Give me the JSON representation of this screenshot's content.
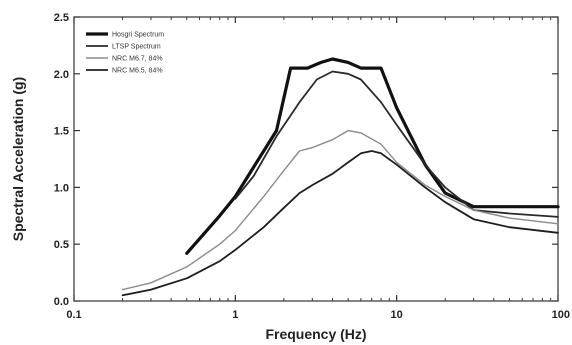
{
  "chart_data": {
    "type": "line",
    "xscale": "log",
    "xlim": [
      0.1,
      100
    ],
    "ylim": [
      0.0,
      2.5
    ],
    "xlabel": "Frequency (Hz)",
    "ylabel": "Spectral Acceleration (g)",
    "xticks": [
      {
        "value": 0.1,
        "label": "0.1"
      },
      {
        "value": 1,
        "label": "1"
      },
      {
        "value": 10,
        "label": "10"
      },
      {
        "value": 100,
        "label": "100"
      }
    ],
    "yticks": [
      {
        "value": 0.0,
        "label": "0.0"
      },
      {
        "value": 0.5,
        "label": "0.5"
      },
      {
        "value": 1.0,
        "label": "1.0"
      },
      {
        "value": 1.5,
        "label": "1.5"
      },
      {
        "value": 2.0,
        "label": "2.0"
      },
      {
        "value": 2.5,
        "label": "2.5"
      }
    ],
    "legend_position": "top-left",
    "series": [
      {
        "name": "Hosgri Spectrum",
        "color": "#111111",
        "points": [
          [
            0.5,
            0.42
          ],
          [
            0.8,
            0.75
          ],
          [
            1.0,
            0.92
          ],
          [
            1.3,
            1.18
          ],
          [
            1.8,
            1.5
          ],
          [
            2.2,
            2.05
          ],
          [
            2.8,
            2.05
          ],
          [
            3.4,
            2.1
          ],
          [
            4,
            2.13
          ],
          [
            5,
            2.1
          ],
          [
            6,
            2.05
          ],
          [
            8,
            2.05
          ],
          [
            10,
            1.7
          ],
          [
            15,
            1.2
          ],
          [
            20,
            0.95
          ],
          [
            30,
            0.83
          ],
          [
            50,
            0.83
          ],
          [
            100,
            0.83
          ]
        ]
      },
      {
        "name": "LTSP Spectrum",
        "color": "#2a2a2a",
        "points": [
          [
            1.0,
            0.9
          ],
          [
            1.3,
            1.1
          ],
          [
            1.8,
            1.45
          ],
          [
            2.5,
            1.75
          ],
          [
            3.2,
            1.95
          ],
          [
            4,
            2.02
          ],
          [
            5,
            2.0
          ],
          [
            6,
            1.95
          ],
          [
            8,
            1.75
          ],
          [
            10,
            1.55
          ],
          [
            15,
            1.2
          ],
          [
            20,
            1.0
          ],
          [
            30,
            0.8
          ],
          [
            50,
            0.77
          ],
          [
            100,
            0.74
          ]
        ]
      },
      {
        "name": "NRC M6.7, 84%",
        "color": "#8a8a8a",
        "points": [
          [
            0.2,
            0.1
          ],
          [
            0.3,
            0.16
          ],
          [
            0.5,
            0.3
          ],
          [
            0.8,
            0.5
          ],
          [
            1,
            0.62
          ],
          [
            1.5,
            0.92
          ],
          [
            2,
            1.15
          ],
          [
            2.5,
            1.32
          ],
          [
            3,
            1.35
          ],
          [
            4,
            1.42
          ],
          [
            5,
            1.5
          ],
          [
            6,
            1.48
          ],
          [
            8,
            1.38
          ],
          [
            10,
            1.22
          ],
          [
            15,
            1.02
          ],
          [
            20,
            0.92
          ],
          [
            30,
            0.8
          ],
          [
            50,
            0.73
          ],
          [
            100,
            0.68
          ]
        ]
      },
      {
        "name": "NRC M6.5, 84%",
        "color": "#1e1e1e",
        "points": [
          [
            0.2,
            0.05
          ],
          [
            0.3,
            0.1
          ],
          [
            0.5,
            0.2
          ],
          [
            0.8,
            0.35
          ],
          [
            1,
            0.45
          ],
          [
            1.5,
            0.65
          ],
          [
            2,
            0.82
          ],
          [
            2.5,
            0.95
          ],
          [
            3,
            1.02
          ],
          [
            4,
            1.12
          ],
          [
            5,
            1.22
          ],
          [
            6,
            1.3
          ],
          [
            7,
            1.32
          ],
          [
            8,
            1.3
          ],
          [
            10,
            1.2
          ],
          [
            15,
            1.0
          ],
          [
            20,
            0.87
          ],
          [
            30,
            0.72
          ],
          [
            50,
            0.65
          ],
          [
            100,
            0.6
          ]
        ]
      }
    ]
  }
}
